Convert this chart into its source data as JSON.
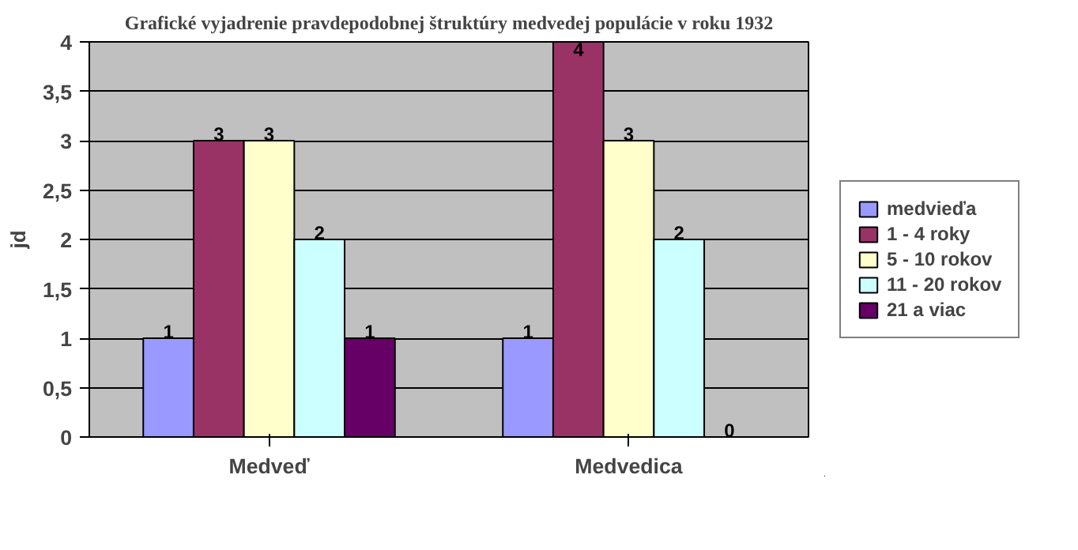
{
  "chart_data": {
    "type": "bar",
    "title": "Grafické vyjadrenie pravdepodobnej štruktúry medvedej populácie v roku 1932",
    "ylabel": "jd",
    "categories": [
      "Medveď",
      "Medvedica"
    ],
    "series": [
      {
        "name": "medvieďa",
        "color": "#9999ff",
        "values": [
          1,
          1
        ]
      },
      {
        "name": "1 - 4 roky",
        "color": "#993366",
        "values": [
          3,
          4
        ]
      },
      {
        "name": "5 - 10 rokov",
        "color": "#ffffcc",
        "values": [
          3,
          3
        ]
      },
      {
        "name": "11 - 20 rokov",
        "color": "#ccffff",
        "values": [
          2,
          2
        ]
      },
      {
        "name": "21 a viac",
        "color": "#660066",
        "values": [
          1,
          0
        ]
      }
    ],
    "ylim": [
      0,
      4
    ],
    "yticks": [
      0,
      {
        "value": 0.5,
        "label": "0,5"
      },
      1,
      {
        "value": 1.5,
        "label": "1,5"
      },
      2,
      {
        "value": 2.5,
        "label": "2,5"
      },
      3,
      {
        "value": 3.5,
        "label": "3,5"
      },
      4
    ],
    "grid": "y",
    "legend": "right",
    "data_labels": true
  }
}
